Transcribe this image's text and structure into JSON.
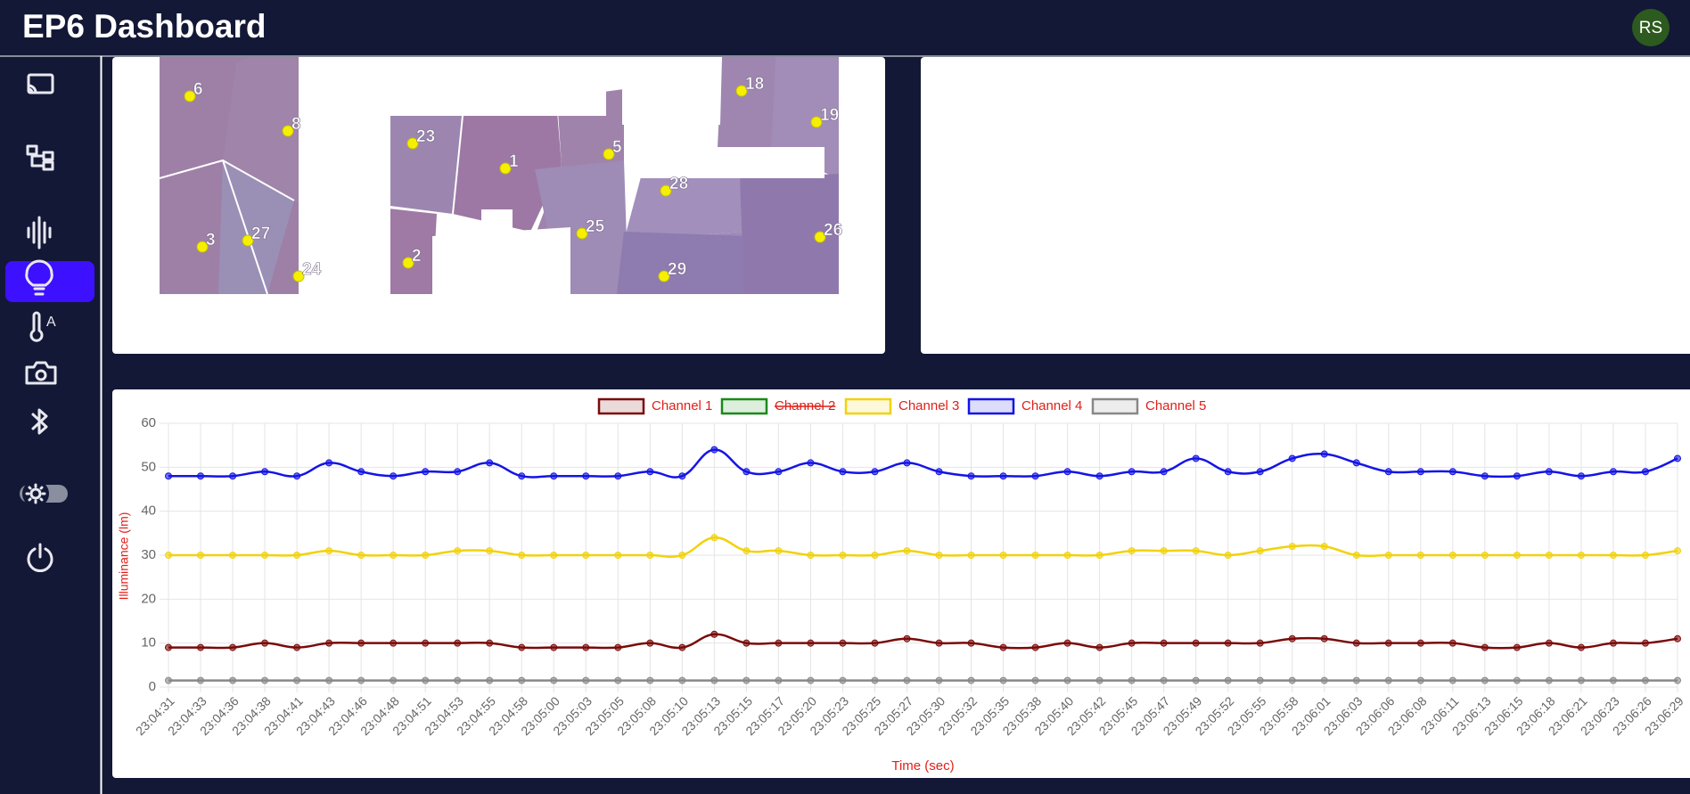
{
  "header": {
    "title": "EP6 Dashboard",
    "avatar": "RS"
  },
  "map": {
    "labels": [
      "6",
      "8",
      "23",
      "1",
      "5",
      "18",
      "19",
      "28",
      "3",
      "27",
      "24",
      "2",
      "25",
      "29",
      "26"
    ]
  },
  "chart_data": {
    "type": "line",
    "x_label": "Time (sec)",
    "y_label": "Illuminance (lm)",
    "categories": [
      "23:04:31",
      "23:04:33",
      "23:04:36",
      "23:04:38",
      "23:04:41",
      "23:04:43",
      "23:04:46",
      "23:04:48",
      "23:04:51",
      "23:04:53",
      "23:04:55",
      "23:04:58",
      "23:05:00",
      "23:05:03",
      "23:05:05",
      "23:05:08",
      "23:05:10",
      "23:05:13",
      "23:05:15",
      "23:05:17",
      "23:05:20",
      "23:05:23",
      "23:05:25",
      "23:05:27",
      "23:05:30",
      "23:05:32",
      "23:05:35",
      "23:05:38",
      "23:05:40",
      "23:05:42",
      "23:05:45",
      "23:05:47",
      "23:05:49",
      "23:05:52",
      "23:05:55",
      "23:05:58",
      "23:06:01",
      "23:06:03",
      "23:06:06",
      "23:06:08",
      "23:06:11",
      "23:06:13",
      "23:06:15",
      "23:06:18",
      "23:06:21",
      "23:06:23",
      "23:06:26",
      "23:06:29"
    ],
    "series": [
      {
        "name": "Channel 1",
        "color": "#7a0a0a",
        "values": [
          9,
          9,
          9,
          10,
          9,
          10,
          10,
          10,
          10,
          10,
          10,
          9,
          9,
          9,
          9,
          10,
          9,
          12,
          10,
          10,
          10,
          10,
          10,
          11,
          10,
          10,
          9,
          9,
          10,
          9,
          10,
          10,
          10,
          10,
          10,
          11,
          11,
          10,
          10,
          10,
          10,
          9,
          9,
          10,
          9,
          10,
          10,
          11
        ]
      },
      {
        "name": "Channel 2",
        "color": "#1a8a1a",
        "hidden": true,
        "values": [
          null,
          null,
          null,
          null,
          null,
          null,
          null,
          null,
          null,
          null,
          null,
          null,
          null,
          null,
          null,
          null,
          null,
          null,
          null,
          null,
          null,
          null,
          null,
          null,
          null,
          null,
          null,
          null,
          null,
          null,
          null,
          null,
          null,
          null,
          null,
          null,
          null,
          null,
          null,
          null,
          null,
          null,
          null,
          null,
          null,
          null,
          null,
          null
        ]
      },
      {
        "name": "Channel 3",
        "color": "#f2d20a",
        "values": [
          30,
          30,
          30,
          30,
          30,
          31,
          30,
          30,
          30,
          31,
          31,
          30,
          30,
          30,
          30,
          30,
          30,
          34,
          31,
          31,
          30,
          30,
          30,
          31,
          30,
          30,
          30,
          30,
          30,
          30,
          31,
          31,
          31,
          30,
          31,
          32,
          32,
          30,
          30,
          30,
          30,
          30,
          30,
          30,
          30,
          30,
          30,
          31
        ]
      },
      {
        "name": "Channel 4",
        "color": "#1414e6",
        "values": [
          48,
          48,
          48,
          49,
          48,
          51,
          49,
          48,
          49,
          49,
          51,
          48,
          48,
          48,
          48,
          49,
          48,
          54,
          49,
          49,
          51,
          49,
          49,
          51,
          49,
          48,
          48,
          48,
          49,
          48,
          49,
          49,
          52,
          49,
          49,
          52,
          53,
          51,
          49,
          49,
          49,
          48,
          48,
          49,
          48,
          49,
          49,
          52
        ]
      },
      {
        "name": "Channel 5",
        "color": "#888888",
        "values": [
          1.5,
          1.5,
          1.5,
          1.5,
          1.5,
          1.5,
          1.5,
          1.5,
          1.5,
          1.5,
          1.5,
          1.5,
          1.5,
          1.5,
          1.5,
          1.5,
          1.5,
          1.5,
          1.5,
          1.5,
          1.5,
          1.5,
          1.5,
          1.5,
          1.5,
          1.5,
          1.5,
          1.5,
          1.5,
          1.5,
          1.5,
          1.5,
          1.5,
          1.5,
          1.5,
          1.5,
          1.5,
          1.5,
          1.5,
          1.5,
          1.5,
          1.5,
          1.5,
          1.5,
          1.5,
          1.5,
          1.5,
          1.5
        ]
      }
    ],
    "ylim": [
      0,
      60
    ],
    "yticks": [
      0,
      10,
      20,
      30,
      40,
      50,
      60
    ],
    "grid": true,
    "legend": "top"
  }
}
